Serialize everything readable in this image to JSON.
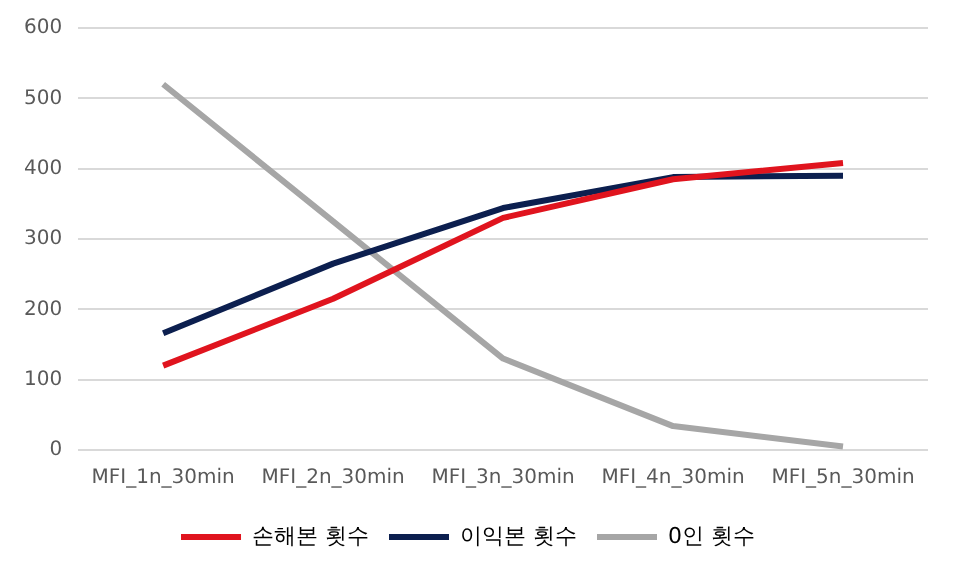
{
  "chart_data": {
    "type": "line",
    "categories": [
      "MFI_1n_30min",
      "MFI_2n_30min",
      "MFI_3n_30min",
      "MFI_4n_30min",
      "MFI_5n_30min"
    ],
    "series": [
      {
        "name": "손해본 횟수",
        "color": "#e0141e",
        "values": [
          120,
          215,
          330,
          385,
          408
        ]
      },
      {
        "name": "이익본 횟수",
        "color": "#0c1f4f",
        "values": [
          166,
          265,
          344,
          388,
          390
        ]
      },
      {
        "name": "0인 횟수",
        "color": "#a6a6a6",
        "values": [
          520,
          325,
          130,
          34,
          5
        ]
      }
    ],
    "ylim": [
      0,
      600
    ],
    "yticks": [
      0,
      100,
      200,
      300,
      400,
      500,
      600
    ],
    "grid": "y",
    "legend": "bottom",
    "marker": "none",
    "line_style": "solid"
  }
}
